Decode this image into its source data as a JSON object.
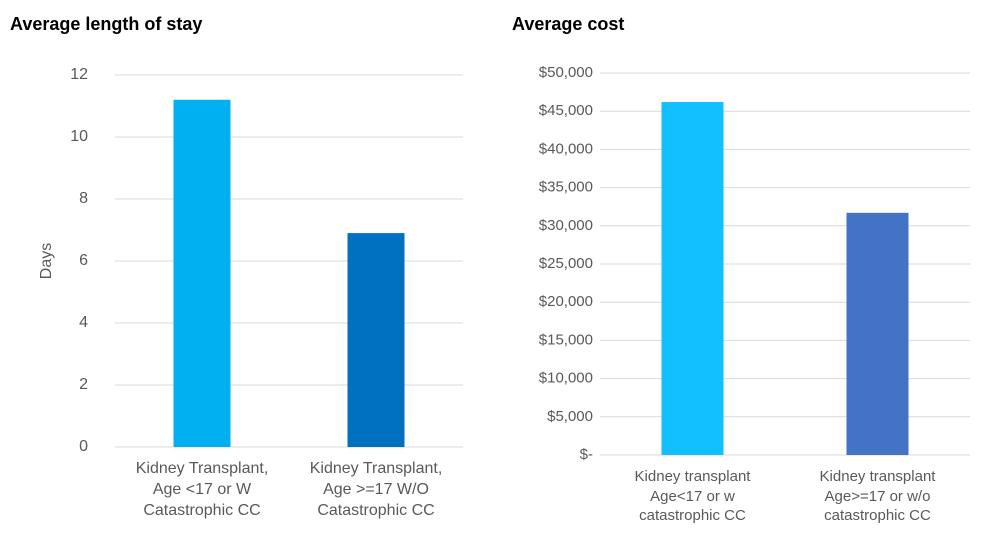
{
  "chart_data": [
    {
      "type": "bar",
      "title": "Average length of stay",
      "y_label": "Days",
      "categories": [
        "Kidney Transplant,\nAge <17 or W\nCatastrophic CC",
        "Kidney Transplant,\nAge >=17 W/O\nCatastrophic CC"
      ],
      "values": [
        11.2,
        6.9
      ],
      "colors": [
        "#00b0f0",
        "#0070c0"
      ],
      "ylim": [
        0,
        12
      ],
      "yticks": [
        0,
        2,
        4,
        6,
        8,
        10,
        12
      ],
      "grid": true
    },
    {
      "type": "bar",
      "title": "Average cost",
      "categories": [
        "Kidney transplant\nAge<17 or w\ncatastrophic CC",
        "Kidney transplant\nAge>=17 or w/o\ncatastrophic CC"
      ],
      "values": [
        46200,
        31700
      ],
      "colors": [
        "#12bfff",
        "#4472c4"
      ],
      "ylim": [
        0,
        50000
      ],
      "yticks": [
        {
          "value": 0,
          "label": "$-"
        },
        {
          "value": 5000,
          "label": "$5,000"
        },
        {
          "value": 10000,
          "label": "$10,000"
        },
        {
          "value": 15000,
          "label": "$15,000"
        },
        {
          "value": 20000,
          "label": "$20,000"
        },
        {
          "value": 25000,
          "label": "$25,000"
        },
        {
          "value": 30000,
          "label": "$30,000"
        },
        {
          "value": 35000,
          "label": "$35,000"
        },
        {
          "value": 40000,
          "label": "$40,000"
        },
        {
          "value": 45000,
          "label": "$45,000"
        },
        {
          "value": 50000,
          "label": "$50,000"
        }
      ],
      "grid": true
    }
  ]
}
